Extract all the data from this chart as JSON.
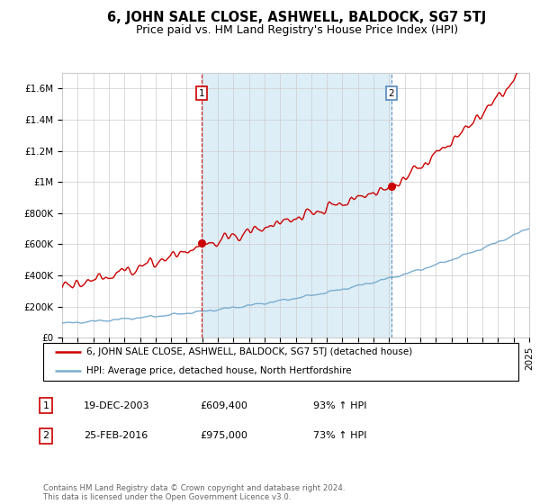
{
  "title": "6, JOHN SALE CLOSE, ASHWELL, BALDOCK, SG7 5TJ",
  "subtitle": "Price paid vs. HM Land Registry's House Price Index (HPI)",
  "ylim": [
    0,
    1700000
  ],
  "yticks": [
    0,
    200000,
    400000,
    600000,
    800000,
    1000000,
    1200000,
    1400000,
    1600000
  ],
  "ytick_labels": [
    "£0",
    "£200K",
    "£400K",
    "£600K",
    "£800K",
    "£1M",
    "£1.2M",
    "£1.4M",
    "£1.6M"
  ],
  "x_start_year": 1995,
  "x_end_year": 2025,
  "red_color": "#cc0000",
  "blue_color": "#7aadcf",
  "shade_color": "#ddeef7",
  "vline_color1": "#cc0000",
  "vline_color2": "#5588bb",
  "sale1_year": 2003.97,
  "sale1_price": 609400,
  "sale1_label": "1",
  "sale2_year": 2016.15,
  "sale2_price": 975000,
  "sale2_label": "2",
  "legend_red_label": "6, JOHN SALE CLOSE, ASHWELL, BALDOCK, SG7 5TJ (detached house)",
  "legend_blue_label": "HPI: Average price, detached house, North Hertfordshire",
  "annotation1_date": "19-DEC-2003",
  "annotation1_price": "£609,400",
  "annotation1_hpi": "93% ↑ HPI",
  "annotation1_num": "1",
  "annotation2_date": "25-FEB-2016",
  "annotation2_price": "£975,000",
  "annotation2_hpi": "73% ↑ HPI",
  "annotation2_num": "2",
  "footer": "Contains HM Land Registry data © Crown copyright and database right 2024.\nThis data is licensed under the Open Government Licence v3.0.",
  "bg_color": "#ffffff",
  "grid_color": "#cccccc",
  "title_fontsize": 10.5,
  "subtitle_fontsize": 9,
  "tick_fontsize": 7.5,
  "legend_fontsize": 7.5,
  "annotation_fontsize": 8
}
